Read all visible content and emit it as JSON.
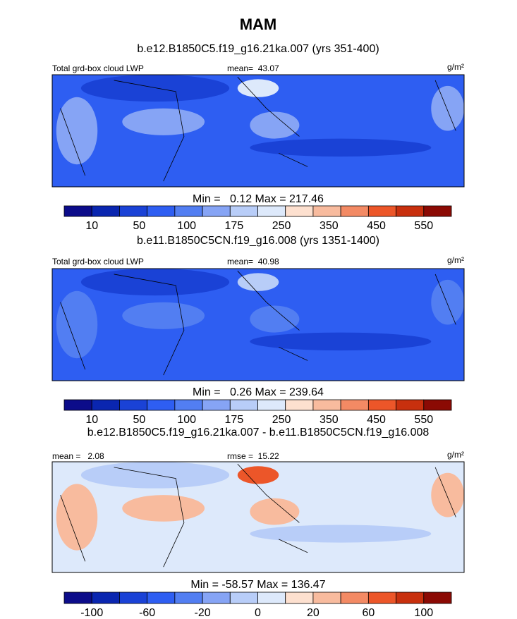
{
  "title": "MAM",
  "panels": [
    {
      "subtitle": "b.e12.B1850C5.f19_g16.21ka.007 (yrs 351-400)",
      "left_label": "Total grd-box cloud LWP",
      "center_label": "mean=  43.07",
      "unit": "g/m²",
      "min_max": "Min =   0.12 Max = 217.46",
      "colorbar": {
        "colors": [
          "#0c0c8a",
          "#0a26b0",
          "#1a42d6",
          "#2e5ef2",
          "#527ef2",
          "#86a4f5",
          "#b8cdf8",
          "#dde9fb",
          "#fde0cf",
          "#f8bb9e",
          "#f38a64",
          "#ec5629",
          "#c8300e",
          "#8b0a04"
        ],
        "labels": [
          10,
          50,
          100,
          175,
          250,
          350,
          450,
          550
        ]
      }
    },
    {
      "subtitle": "b.e11.B1850C5CN.f19_g16.008 (yrs 1351-1400)",
      "left_label": "Total grd-box cloud LWP",
      "center_label": "mean=  40.98",
      "unit": "g/m²",
      "min_max": "Min =   0.26 Max = 239.64",
      "colorbar": {
        "colors": [
          "#0c0c8a",
          "#0a26b0",
          "#1a42d6",
          "#2e5ef2",
          "#527ef2",
          "#86a4f5",
          "#b8cdf8",
          "#dde9fb",
          "#fde0cf",
          "#f8bb9e",
          "#f38a64",
          "#ec5629",
          "#c8300e",
          "#8b0a04"
        ],
        "labels": [
          10,
          50,
          100,
          175,
          250,
          350,
          450,
          550
        ]
      }
    },
    {
      "subtitle": "b.e12.B1850C5.f19_g16.21ka.007 - b.e11.B1850C5CN.f19_g16.008",
      "left_label": "mean =   2.08",
      "center_label": "rmse =  15.22",
      "unit": "g/m²",
      "min_max": "Min = -58.57 Max = 136.47",
      "colorbar": {
        "colors": [
          "#0c0c8a",
          "#0a26b0",
          "#1a42d6",
          "#2e5ef2",
          "#527ef2",
          "#86a4f5",
          "#b8cdf8",
          "#dde9fb",
          "#fde0cf",
          "#f8bb9e",
          "#f38a64",
          "#ec5629",
          "#c8300e",
          "#8b0a04"
        ],
        "labels": [
          -100,
          -60,
          -20,
          0,
          20,
          60,
          100
        ]
      }
    }
  ]
}
